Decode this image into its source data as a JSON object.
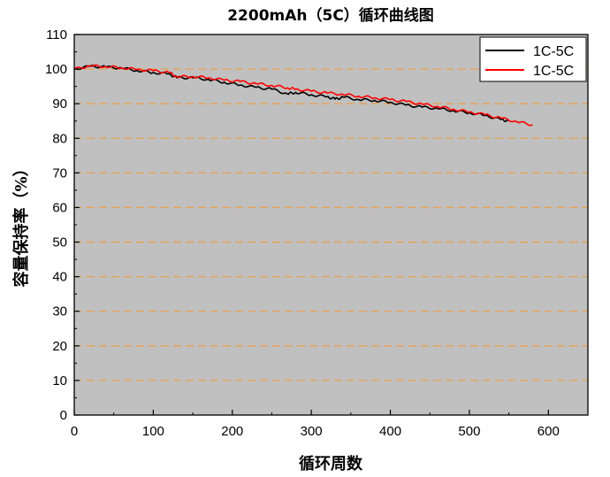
{
  "chart_data": {
    "type": "line",
    "title": "2200mAh（5C）循环曲线图",
    "xlabel": "循环周数",
    "ylabel": "容量保持率（%）",
    "xlim": [
      0,
      650
    ],
    "ylim": [
      0,
      110
    ],
    "xticks": [
      0,
      100,
      200,
      300,
      400,
      500,
      600
    ],
    "yticks": [
      0,
      10,
      20,
      30,
      40,
      50,
      60,
      70,
      80,
      90,
      100,
      110
    ],
    "grid": "horizontal dashed",
    "legend_position": "top-right",
    "colors": {
      "plot_background": "#c0c0c0",
      "grid": "#e8a050"
    },
    "series": [
      {
        "name": "1C-5C",
        "color": "#000000",
        "x": [
          0,
          20,
          40,
          60,
          80,
          100,
          120,
          130,
          150,
          170,
          190,
          210,
          230,
          250,
          270,
          280,
          300,
          320,
          330,
          340,
          360,
          380,
          400,
          420,
          440,
          460,
          480,
          500,
          520,
          540,
          550
        ],
        "y": [
          100,
          100.8,
          100.6,
          100.3,
          99.6,
          99.0,
          98.6,
          97.5,
          97.5,
          97.0,
          96.2,
          95.4,
          94.7,
          94.2,
          92.8,
          93.3,
          92.6,
          92.0,
          91.3,
          91.9,
          91.2,
          91.0,
          90.4,
          89.6,
          89.0,
          88.6,
          88.0,
          87.4,
          86.6,
          85.4,
          85.0
        ]
      },
      {
        "name": "1C-5C",
        "color": "#ff0000",
        "x": [
          0,
          20,
          40,
          60,
          80,
          100,
          120,
          130,
          150,
          170,
          190,
          210,
          230,
          250,
          270,
          280,
          300,
          320,
          340,
          360,
          380,
          400,
          420,
          440,
          460,
          480,
          500,
          520,
          540,
          560,
          580
        ],
        "y": [
          100,
          100.9,
          100.8,
          100.4,
          99.9,
          99.5,
          99.0,
          97.8,
          97.9,
          97.5,
          96.8,
          96.4,
          95.8,
          95.3,
          94.6,
          94.2,
          93.6,
          93.1,
          92.7,
          92.2,
          91.7,
          91.2,
          90.6,
          89.9,
          89.2,
          88.4,
          87.6,
          86.8,
          85.8,
          84.8,
          83.9
        ]
      }
    ]
  }
}
